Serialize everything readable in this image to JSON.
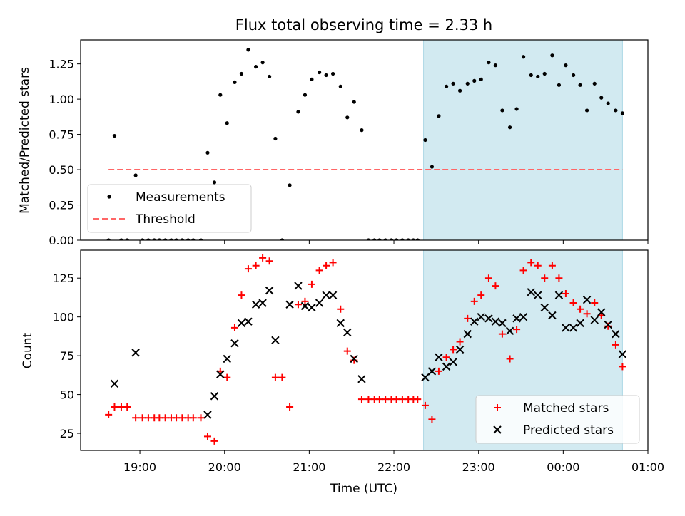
{
  "title": "Flux total observing time = 2.33 h",
  "xlabel": "Time (UTC)",
  "top": {
    "ylabel": "Matched/Predicted stars",
    "yticks": [
      "0.00",
      "0.25",
      "0.50",
      "0.75",
      "1.00",
      "1.25"
    ],
    "legend": [
      "Measurements",
      "Threshold"
    ]
  },
  "bottom": {
    "ylabel": "Count",
    "yticks": [
      "25",
      "50",
      "75",
      "100",
      "125"
    ],
    "legend": [
      "Matched stars",
      "Predicted stars"
    ]
  },
  "xticks": [
    "19:00",
    "20:00",
    "21:00",
    "22:00",
    "23:00",
    "00:00",
    "01:00"
  ],
  "colors": {
    "measurement": "#000000",
    "threshold": "#ff6666",
    "matched": "#ff0000",
    "predicted": "#000000",
    "shade": "#add8e6"
  },
  "chart_data": [
    {
      "type": "scatter",
      "title": "Flux total observing time = 2.33 h",
      "ylabel": "Matched/Predicted stars",
      "xlabel": "",
      "xlim": [
        18.3,
        25.0
      ],
      "ylim": [
        0.0,
        1.42
      ],
      "shaded_interval": [
        22.35,
        24.7
      ],
      "threshold": {
        "name": "Threshold",
        "y": 0.5,
        "x_range": [
          18.63,
          24.7
        ]
      },
      "series": [
        {
          "name": "Measurements",
          "points": [
            [
              18.63,
              0.0
            ],
            [
              18.7,
              0.74
            ],
            [
              18.78,
              0.0
            ],
            [
              18.85,
              0.0
            ],
            [
              18.95,
              0.46
            ],
            [
              19.03,
              0.0
            ],
            [
              19.1,
              0.0
            ],
            [
              19.17,
              0.0
            ],
            [
              19.23,
              0.0
            ],
            [
              19.3,
              0.0
            ],
            [
              19.37,
              0.0
            ],
            [
              19.43,
              0.0
            ],
            [
              19.5,
              0.0
            ],
            [
              19.57,
              0.0
            ],
            [
              19.63,
              0.0
            ],
            [
              19.72,
              0.0
            ],
            [
              19.8,
              0.62
            ],
            [
              19.88,
              0.41
            ],
            [
              19.95,
              1.03
            ],
            [
              20.03,
              0.83
            ],
            [
              20.12,
              1.12
            ],
            [
              20.2,
              1.18
            ],
            [
              20.28,
              1.35
            ],
            [
              20.37,
              1.23
            ],
            [
              20.45,
              1.26
            ],
            [
              20.53,
              1.16
            ],
            [
              20.6,
              0.72
            ],
            [
              20.68,
              0.0
            ],
            [
              20.77,
              0.39
            ],
            [
              20.87,
              0.91
            ],
            [
              20.95,
              1.03
            ],
            [
              21.03,
              1.14
            ],
            [
              21.12,
              1.19
            ],
            [
              21.2,
              1.17
            ],
            [
              21.28,
              1.18
            ],
            [
              21.37,
              1.09
            ],
            [
              21.45,
              0.87
            ],
            [
              21.53,
              0.98
            ],
            [
              21.62,
              0.78
            ],
            [
              21.7,
              0.0
            ],
            [
              21.77,
              0.0
            ],
            [
              21.83,
              0.0
            ],
            [
              21.9,
              0.0
            ],
            [
              21.97,
              0.0
            ],
            [
              22.03,
              0.0
            ],
            [
              22.1,
              0.0
            ],
            [
              22.17,
              0.0
            ],
            [
              22.23,
              0.0
            ],
            [
              22.28,
              0.0
            ],
            [
              22.37,
              0.71
            ],
            [
              22.45,
              0.52
            ],
            [
              22.53,
              0.88
            ],
            [
              22.62,
              1.09
            ],
            [
              22.7,
              1.11
            ],
            [
              22.78,
              1.06
            ],
            [
              22.87,
              1.11
            ],
            [
              22.95,
              1.13
            ],
            [
              23.03,
              1.14
            ],
            [
              23.12,
              1.26
            ],
            [
              23.2,
              1.24
            ],
            [
              23.28,
              0.92
            ],
            [
              23.37,
              0.8
            ],
            [
              23.45,
              0.93
            ],
            [
              23.53,
              1.3
            ],
            [
              23.62,
              1.17
            ],
            [
              23.7,
              1.16
            ],
            [
              23.78,
              1.18
            ],
            [
              23.87,
              1.31
            ],
            [
              23.95,
              1.1
            ],
            [
              24.03,
              1.24
            ],
            [
              24.12,
              1.17
            ],
            [
              24.2,
              1.1
            ],
            [
              24.28,
              0.92
            ],
            [
              24.37,
              1.11
            ],
            [
              24.45,
              1.01
            ],
            [
              24.53,
              0.97
            ],
            [
              24.62,
              0.92
            ],
            [
              24.7,
              0.9
            ]
          ]
        }
      ],
      "legend_position": "lower-left"
    },
    {
      "type": "scatter",
      "title": "",
      "ylabel": "Count",
      "xlabel": "Time (UTC)",
      "xlim": [
        18.3,
        25.0
      ],
      "ylim": [
        14,
        143
      ],
      "shaded_interval": [
        22.35,
        24.7
      ],
      "series": [
        {
          "name": "Matched stars",
          "points": [
            [
              18.63,
              37
            ],
            [
              18.7,
              42
            ],
            [
              18.78,
              42
            ],
            [
              18.85,
              42
            ],
            [
              18.95,
              35
            ],
            [
              19.03,
              35
            ],
            [
              19.1,
              35
            ],
            [
              19.17,
              35
            ],
            [
              19.23,
              35
            ],
            [
              19.3,
              35
            ],
            [
              19.37,
              35
            ],
            [
              19.43,
              35
            ],
            [
              19.5,
              35
            ],
            [
              19.57,
              35
            ],
            [
              19.63,
              35
            ],
            [
              19.72,
              35
            ],
            [
              19.8,
              23
            ],
            [
              19.88,
              20
            ],
            [
              19.95,
              65
            ],
            [
              20.03,
              61
            ],
            [
              20.12,
              93
            ],
            [
              20.2,
              114
            ],
            [
              20.28,
              131
            ],
            [
              20.37,
              133
            ],
            [
              20.45,
              138
            ],
            [
              20.53,
              136
            ],
            [
              20.6,
              61
            ],
            [
              20.68,
              61
            ],
            [
              20.77,
              42
            ],
            [
              20.87,
              108
            ],
            [
              20.95,
              110
            ],
            [
              21.03,
              121
            ],
            [
              21.12,
              130
            ],
            [
              21.2,
              133
            ],
            [
              21.28,
              135
            ],
            [
              21.37,
              105
            ],
            [
              21.45,
              78
            ],
            [
              21.53,
              72
            ],
            [
              21.62,
              47
            ],
            [
              21.7,
              47
            ],
            [
              21.77,
              47
            ],
            [
              21.83,
              47
            ],
            [
              21.9,
              47
            ],
            [
              21.97,
              47
            ],
            [
              22.03,
              47
            ],
            [
              22.1,
              47
            ],
            [
              22.17,
              47
            ],
            [
              22.23,
              47
            ],
            [
              22.28,
              47
            ],
            [
              22.37,
              43
            ],
            [
              22.45,
              34
            ],
            [
              22.53,
              65
            ],
            [
              22.62,
              74
            ],
            [
              22.7,
              79
            ],
            [
              22.78,
              84
            ],
            [
              22.87,
              99
            ],
            [
              22.95,
              110
            ],
            [
              23.03,
              114
            ],
            [
              23.12,
              125
            ],
            [
              23.2,
              120
            ],
            [
              23.28,
              89
            ],
            [
              23.37,
              73
            ],
            [
              23.45,
              92
            ],
            [
              23.53,
              130
            ],
            [
              23.62,
              135
            ],
            [
              23.7,
              133
            ],
            [
              23.78,
              125
            ],
            [
              23.87,
              133
            ],
            [
              23.95,
              125
            ],
            [
              24.03,
              115
            ],
            [
              24.12,
              109
            ],
            [
              24.2,
              105
            ],
            [
              24.28,
              102
            ],
            [
              24.37,
              109
            ],
            [
              24.45,
              101
            ],
            [
              24.53,
              94
            ],
            [
              24.62,
              82
            ],
            [
              24.7,
              68
            ]
          ]
        },
        {
          "name": "Predicted stars",
          "points": [
            [
              18.7,
              57
            ],
            [
              18.95,
              77
            ],
            [
              19.8,
              37
            ],
            [
              19.88,
              49
            ],
            [
              19.95,
              63
            ],
            [
              20.03,
              73
            ],
            [
              20.12,
              83
            ],
            [
              20.2,
              96
            ],
            [
              20.28,
              97
            ],
            [
              20.37,
              108
            ],
            [
              20.45,
              109
            ],
            [
              20.53,
              117
            ],
            [
              20.6,
              85
            ],
            [
              20.77,
              108
            ],
            [
              20.87,
              120
            ],
            [
              20.95,
              107
            ],
            [
              21.03,
              106
            ],
            [
              21.12,
              109
            ],
            [
              21.2,
              114
            ],
            [
              21.28,
              114
            ],
            [
              21.37,
              96
            ],
            [
              21.45,
              90
            ],
            [
              21.53,
              73
            ],
            [
              21.62,
              60
            ],
            [
              22.37,
              61
            ],
            [
              22.45,
              65
            ],
            [
              22.53,
              74
            ],
            [
              22.62,
              68
            ],
            [
              22.7,
              71
            ],
            [
              22.78,
              79
            ],
            [
              22.87,
              89
            ],
            [
              22.95,
              97
            ],
            [
              23.03,
              100
            ],
            [
              23.12,
              99
            ],
            [
              23.2,
              97
            ],
            [
              23.28,
              96
            ],
            [
              23.37,
              91
            ],
            [
              23.45,
              99
            ],
            [
              23.53,
              100
            ],
            [
              23.62,
              116
            ],
            [
              23.7,
              114
            ],
            [
              23.78,
              106
            ],
            [
              23.87,
              101
            ],
            [
              23.95,
              114
            ],
            [
              24.03,
              93
            ],
            [
              24.12,
              93
            ],
            [
              24.2,
              96
            ],
            [
              24.28,
              111
            ],
            [
              24.37,
              98
            ],
            [
              24.45,
              103
            ],
            [
              24.53,
              95
            ],
            [
              24.62,
              89
            ],
            [
              24.7,
              76
            ]
          ]
        }
      ],
      "legend_position": "lower-right"
    }
  ]
}
